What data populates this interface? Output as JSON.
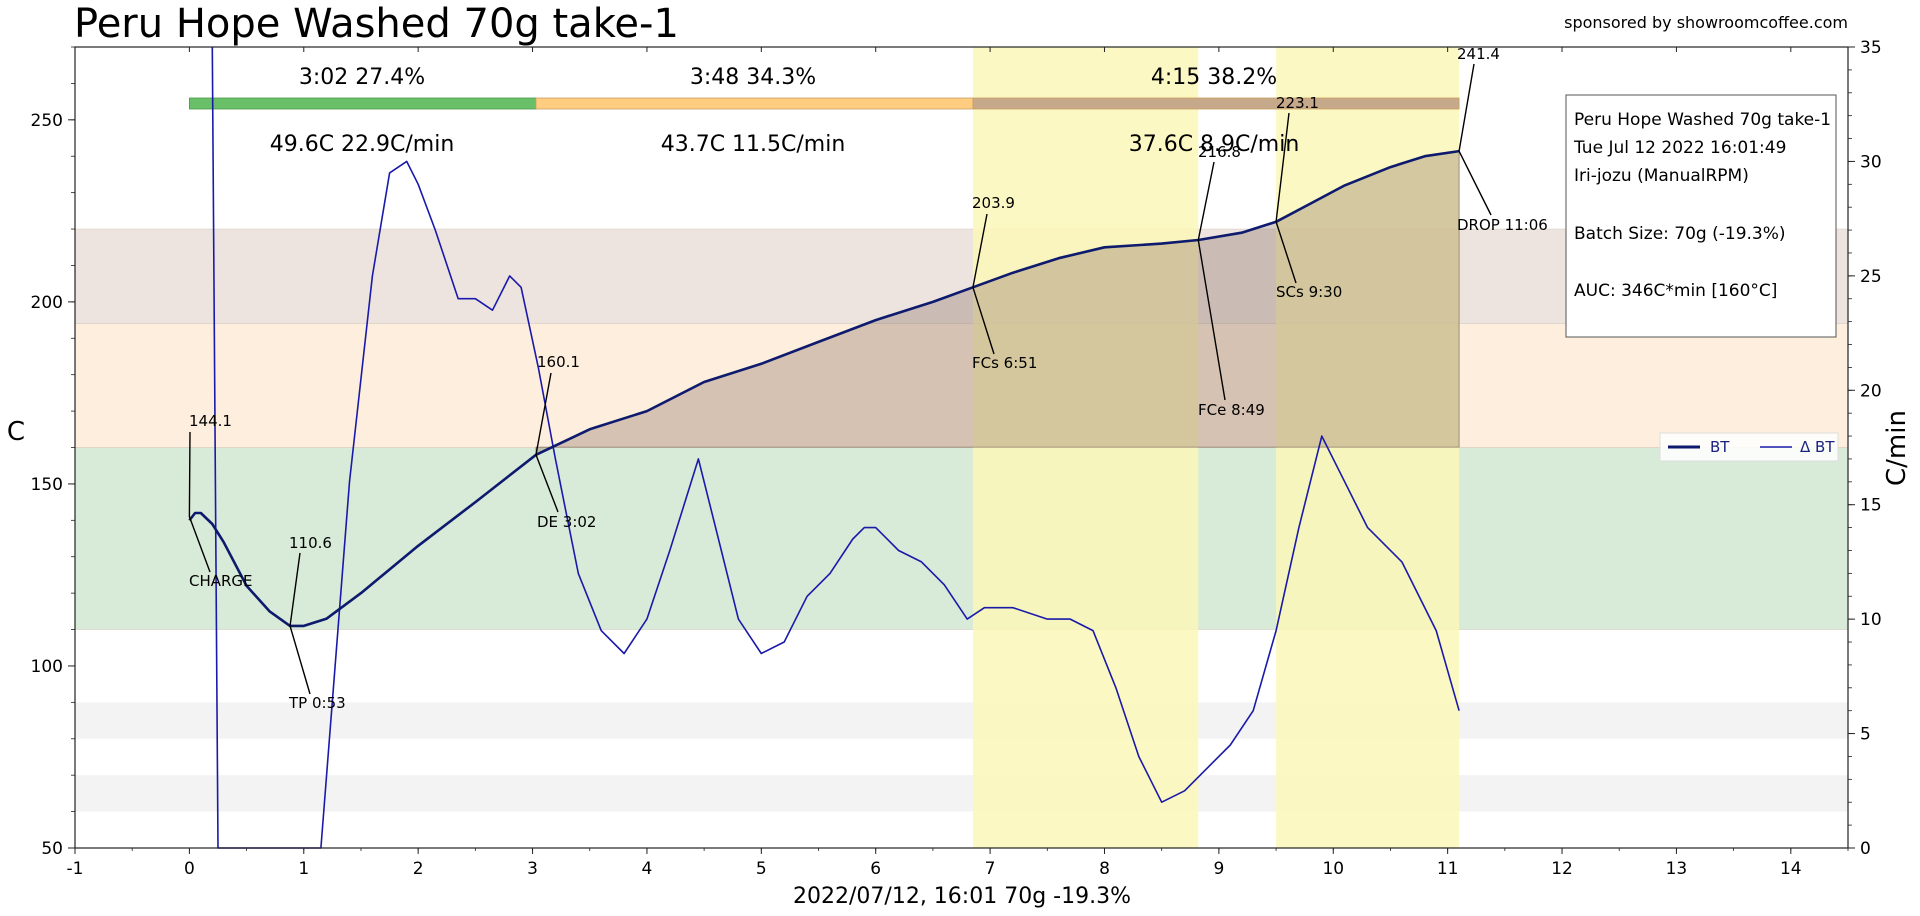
{
  "page": {
    "title": "Peru Hope Washed 70g take-1",
    "sponsor": "sponsored by showroomcoffee.com",
    "xlabel": "2022/07/12, 16:01   70g  -19.3%",
    "ylabel_left": "C",
    "ylabel_right": "C/min"
  },
  "info_box": {
    "lines": [
      "Peru Hope Washed 70g take-1",
      "Tue Jul 12 2022 16:01:49",
      "Iri-jozu (ManualRPM)",
      "",
      "Batch Size: 70g (-19.3%)",
      "",
      "AUC: 346C*min [160°C]"
    ]
  },
  "legend": {
    "bt": "BT",
    "dbt": "Δ BT"
  },
  "phases": {
    "times": [
      "3:02  27.4%",
      "3:48  34.3%",
      "4:15  38.2%"
    ],
    "stats": [
      "49.6C  22.9C/min",
      "43.7C  11.5C/min",
      "37.6C  8.9C/min"
    ]
  },
  "annotations": [
    {
      "value": "144.1",
      "label": "CHARGE"
    },
    {
      "value": "110.6",
      "label": "TP 0:53"
    },
    {
      "value": "160.1",
      "label": "DE 3:02"
    },
    {
      "value": "203.9",
      "label": "FCs 6:51"
    },
    {
      "value": "216.8",
      "label": "FCe 8:49"
    },
    {
      "value": "223.1",
      "label": "SCs 9:30"
    },
    {
      "value": "241.4",
      "label": "DROP 11:06"
    }
  ],
  "colors": {
    "bt": "#0d1a6e",
    "dbt": "#1a1aaa",
    "dry_phase": "#6abf69",
    "maillard_phase": "#ffcc80",
    "dev_phase": "#c6a88a",
    "band_green": "#d8ead8",
    "band_orange": "#fdeedd",
    "band_brown": "#ede4e0",
    "highlight": "#fbf7b8"
  },
  "chart_data": {
    "type": "line",
    "title": "Peru Hope Washed 70g take-1",
    "xlabel": "2022/07/12, 16:01   70g  -19.3%",
    "ylabel": "C",
    "y2label": "C/min",
    "xlim": [
      -1,
      14.5
    ],
    "ylim": [
      50,
      270
    ],
    "y2lim": [
      0,
      35
    ],
    "x_ticks": [
      "-1",
      "0",
      "1",
      "2",
      "3",
      "4",
      "5",
      "6",
      "7",
      "8",
      "9",
      "10",
      "11",
      "12",
      "13",
      "14"
    ],
    "y_ticks": [
      "50",
      "100",
      "150",
      "200",
      "250"
    ],
    "y2_ticks": [
      "0",
      "5",
      "10",
      "15",
      "20",
      "25",
      "30",
      "35"
    ],
    "grid": false,
    "legend_position": "center-right",
    "bands": [
      {
        "from": 110,
        "to": 160,
        "color": "green"
      },
      {
        "from": 160,
        "to": 194,
        "color": "orange"
      },
      {
        "from": 194,
        "to": 220,
        "color": "brown"
      },
      {
        "from": 80,
        "to": 90,
        "color": "gray"
      },
      {
        "from": 60,
        "to": 70,
        "color": "gray"
      }
    ],
    "highlight_spans": [
      [
        6.85,
        8.82
      ],
      [
        9.5,
        11.1
      ]
    ],
    "events": [
      {
        "name": "CHARGE",
        "t": 0.0,
        "bt": 144.1
      },
      {
        "name": "TP",
        "t": 0.88,
        "bt": 110.6
      },
      {
        "name": "DE",
        "t": 3.03,
        "bt": 160.1
      },
      {
        "name": "FCs",
        "t": 6.85,
        "bt": 203.9
      },
      {
        "name": "FCe",
        "t": 8.82,
        "bt": 216.8
      },
      {
        "name": "SCs",
        "t": 9.5,
        "bt": 223.1
      },
      {
        "name": "DROP",
        "t": 11.1,
        "bt": 241.4
      }
    ],
    "series": [
      {
        "name": "BT",
        "axis": "left",
        "points": [
          [
            0.0,
            140
          ],
          [
            0.05,
            142
          ],
          [
            0.1,
            142
          ],
          [
            0.2,
            139
          ],
          [
            0.3,
            134
          ],
          [
            0.5,
            122
          ],
          [
            0.7,
            115
          ],
          [
            0.88,
            111
          ],
          [
            1.0,
            111
          ],
          [
            1.2,
            113
          ],
          [
            1.5,
            120
          ],
          [
            2.0,
            133
          ],
          [
            2.5,
            145
          ],
          [
            3.03,
            158
          ],
          [
            3.5,
            165
          ],
          [
            4.0,
            170
          ],
          [
            4.5,
            178
          ],
          [
            5.0,
            183
          ],
          [
            5.5,
            189
          ],
          [
            6.0,
            195
          ],
          [
            6.5,
            200
          ],
          [
            6.85,
            204
          ],
          [
            7.2,
            208
          ],
          [
            7.6,
            212
          ],
          [
            8.0,
            215
          ],
          [
            8.5,
            216
          ],
          [
            8.82,
            217
          ],
          [
            9.2,
            219
          ],
          [
            9.5,
            222
          ],
          [
            9.8,
            227
          ],
          [
            10.1,
            232
          ],
          [
            10.5,
            237
          ],
          [
            10.8,
            240
          ],
          [
            11.1,
            241.4
          ]
        ]
      },
      {
        "name": "Δ BT",
        "axis": "right",
        "points": [
          [
            0.2,
            35
          ],
          [
            0.25,
            0
          ],
          [
            1.15,
            0
          ],
          [
            1.4,
            16
          ],
          [
            1.6,
            25
          ],
          [
            1.75,
            29.5
          ],
          [
            1.9,
            30
          ],
          [
            2.0,
            29
          ],
          [
            2.15,
            27
          ],
          [
            2.35,
            24
          ],
          [
            2.5,
            24
          ],
          [
            2.65,
            23.5
          ],
          [
            2.8,
            25
          ],
          [
            2.9,
            24.5
          ],
          [
            3.05,
            21
          ],
          [
            3.2,
            17
          ],
          [
            3.4,
            12
          ],
          [
            3.6,
            9.5
          ],
          [
            3.8,
            8.5
          ],
          [
            4.0,
            10
          ],
          [
            4.2,
            13
          ],
          [
            4.45,
            17
          ],
          [
            4.6,
            14
          ],
          [
            4.8,
            10
          ],
          [
            5.0,
            8.5
          ],
          [
            5.2,
            9
          ],
          [
            5.4,
            11
          ],
          [
            5.6,
            12
          ],
          [
            5.8,
            13.5
          ],
          [
            5.9,
            14
          ],
          [
            6.0,
            14
          ],
          [
            6.2,
            13
          ],
          [
            6.4,
            12.5
          ],
          [
            6.6,
            11.5
          ],
          [
            6.8,
            10
          ],
          [
            6.95,
            10.5
          ],
          [
            7.2,
            10.5
          ],
          [
            7.5,
            10
          ],
          [
            7.7,
            10
          ],
          [
            7.9,
            9.5
          ],
          [
            8.1,
            7
          ],
          [
            8.3,
            4
          ],
          [
            8.5,
            2
          ],
          [
            8.7,
            2.5
          ],
          [
            8.9,
            3.5
          ],
          [
            9.1,
            4.5
          ],
          [
            9.3,
            6
          ],
          [
            9.5,
            9.5
          ],
          [
            9.7,
            14
          ],
          [
            9.9,
            18
          ],
          [
            10.1,
            16
          ],
          [
            10.3,
            14
          ],
          [
            10.6,
            12.5
          ],
          [
            10.9,
            9.5
          ],
          [
            11.1,
            6
          ]
        ]
      }
    ]
  }
}
